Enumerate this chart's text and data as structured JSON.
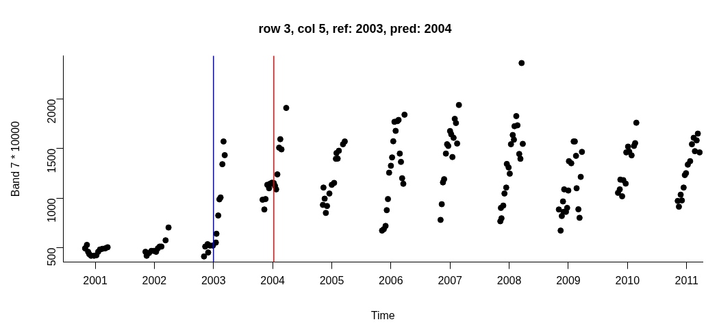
{
  "chart_data": {
    "type": "scatter",
    "title": "row 3, col 5, ref: 2003, pred: 2004",
    "xlabel": "Time",
    "ylabel": "Band 7 * 10000",
    "xlim": [
      2000.46,
      2011.27
    ],
    "xticks": [
      2001,
      2002,
      2003,
      2004,
      2005,
      2006,
      2007,
      2008,
      2009,
      2010,
      2011
    ],
    "ylim": [
      355,
      2435
    ],
    "yticks": [
      500,
      1000,
      1500,
      2000
    ],
    "grid": false,
    "legend": false,
    "marker": "circle",
    "series": [
      {
        "color": "#000000",
        "x": [
          2000.86,
          2000.83,
          2000.88,
          2000.9,
          2000.93,
          2000.98,
          2001.02,
          2001.05,
          2001.08,
          2001.12,
          2001.17,
          2001.21,
          2001.85,
          2001.87,
          2001.91,
          2001.95,
          2001.99,
          2002.03,
          2002.06,
          2002.09,
          2002.12,
          2002.19,
          2002.24,
          2002.84,
          2002.91,
          2002.86,
          2002.9,
          2002.94,
          2002.99,
          2003.04,
          2003.05,
          2003.08,
          2003.1,
          2003.12,
          2003.15,
          2003.19,
          2003.17,
          2003.86,
          2003.83,
          2003.88,
          2003.91,
          2003.94,
          2003.96,
          2003.99,
          2004.02,
          2004.04,
          2004.06,
          2004.08,
          2004.11,
          2004.15,
          2004.13,
          2004.23,
          2004.86,
          2004.88,
          2004.85,
          2004.92,
          2004.9,
          2004.96,
          2005.0,
          2005.04,
          2005.07,
          2005.1,
          2005.08,
          2005.12,
          2005.19,
          2005.22,
          2005.85,
          2005.88,
          2005.91,
          2005.93,
          2005.95,
          2005.97,
          2006.0,
          2006.02,
          2006.04,
          2006.08,
          2006.06,
          2006.11,
          2006.13,
          2006.23,
          2006.15,
          2006.17,
          2006.19,
          2006.21,
          2006.84,
          2006.86,
          2006.88,
          2006.9,
          2006.93,
          2006.95,
          2006.97,
          2007.0,
          2007.02,
          2007.04,
          2007.06,
          2007.08,
          2007.1,
          2007.12,
          2007.15,
          2007.85,
          2007.87,
          2007.86,
          2007.9,
          2007.92,
          2007.95,
          2008.01,
          2007.99,
          2007.96,
          2008.03,
          2008.08,
          2008.06,
          2008.09,
          2008.14,
          2008.12,
          2008.17,
          2008.19,
          2008.23,
          2008.21,
          2008.87,
          2008.84,
          2008.89,
          2008.92,
          2008.96,
          2008.98,
          2008.91,
          2008.93,
          2009.0,
          2009.09,
          2009.11,
          2009.01,
          2009.05,
          2009.13,
          2009.23,
          2009.14,
          2009.21,
          2009.17,
          2009.19,
          2009.84,
          2009.87,
          2009.91,
          2009.88,
          2009.93,
          2009.97,
          2009.98,
          2010.01,
          2010.03,
          2010.07,
          2010.11,
          2010.13,
          2010.15,
          2010.87,
          2010.85,
          2010.92,
          2010.9,
          2010.95,
          2010.97,
          2010.99,
          2011.02,
          2011.06,
          2011.09,
          2011.12,
          2011.17,
          2011.19,
          2011.14,
          2011.22
        ],
        "values": [
          529,
          494,
          459,
          435,
          419,
          419,
          424,
          459,
          482,
          489,
          494,
          505,
          459,
          419,
          447,
          468,
          468,
          459,
          494,
          512,
          512,
          575,
          704,
          412,
          452,
          512,
          536,
          522,
          522,
          552,
          641,
          825,
          988,
          1007,
          1343,
          1434,
          1572,
          886,
          984,
          991,
          1135,
          1100,
          1147,
          1156,
          1152,
          1124,
          1089,
          1240,
          1509,
          1492,
          1595,
          1910,
          1107,
          995,
          932,
          921,
          851,
          1047,
          1135,
          1154,
          1397,
          1399,
          1455,
          1478,
          1544,
          1572,
          673,
          687,
          720,
          879,
          991,
          1257,
          1327,
          1411,
          1574,
          1679,
          1770,
          1777,
          1789,
          1842,
          1450,
          1366,
          1201,
          1145,
          781,
          939,
          1159,
          1191,
          1450,
          1544,
          1527,
          1677,
          1644,
          1415,
          1609,
          1800,
          1758,
          1551,
          1940,
          767,
          797,
          902,
          925,
          1047,
          1107,
          1247,
          1310,
          1345,
          1544,
          1590,
          1637,
          1726,
          1735,
          1828,
          1446,
          1397,
          1548,
          2363,
          673,
          886,
          820,
          862,
          862,
          902,
          967,
          1089,
          1077,
          1572,
          1572,
          1373,
          1352,
          1427,
          1467,
          1100,
          1215,
          888,
          802,
          1054,
          1089,
          1019,
          1187,
          1182,
          1147,
          1462,
          1520,
          1469,
          1432,
          1527,
          1555,
          1761,
          914,
          972,
          977,
          1035,
          1107,
          1233,
          1252,
          1338,
          1373,
          1544,
          1609,
          1583,
          1651,
          1474,
          1462
        ]
      }
    ],
    "ref_lines": [
      {
        "axis": "x",
        "value": 2003,
        "color": "#0000ff"
      },
      {
        "axis": "x",
        "value": 2004.02,
        "color": "#ff0000"
      }
    ]
  }
}
